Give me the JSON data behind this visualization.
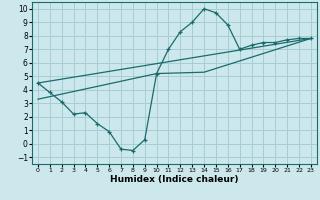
{
  "xlabel": "Humidex (Indice chaleur)",
  "bg_color": "#cce8ec",
  "grid_color": "#a8cdd4",
  "line_color": "#1a6b6b",
  "xlim": [
    -0.5,
    23.5
  ],
  "ylim": [
    -1.5,
    10.5
  ],
  "xticks": [
    0,
    1,
    2,
    3,
    4,
    5,
    6,
    7,
    8,
    9,
    10,
    11,
    12,
    13,
    14,
    15,
    16,
    17,
    18,
    19,
    20,
    21,
    22,
    23
  ],
  "yticks": [
    -1,
    0,
    1,
    2,
    3,
    4,
    5,
    6,
    7,
    8,
    9,
    10
  ],
  "series1_x": [
    0,
    1,
    2,
    3,
    4,
    5,
    6,
    7,
    8,
    9,
    10,
    11,
    12,
    13,
    14,
    15,
    16,
    17,
    18,
    19,
    20,
    21,
    22,
    23
  ],
  "series1_y": [
    4.5,
    3.8,
    3.1,
    2.2,
    2.3,
    1.5,
    0.9,
    -0.4,
    -0.5,
    0.3,
    5.2,
    7.0,
    8.3,
    9.0,
    10.0,
    9.7,
    8.8,
    7.0,
    7.3,
    7.5,
    7.5,
    7.7,
    7.8,
    7.8
  ],
  "series2_x": [
    0,
    23
  ],
  "series2_y": [
    4.5,
    7.8
  ],
  "series3_x": [
    0,
    10,
    14,
    23
  ],
  "series3_y": [
    3.3,
    5.2,
    5.3,
    7.8
  ],
  "marker": "+"
}
